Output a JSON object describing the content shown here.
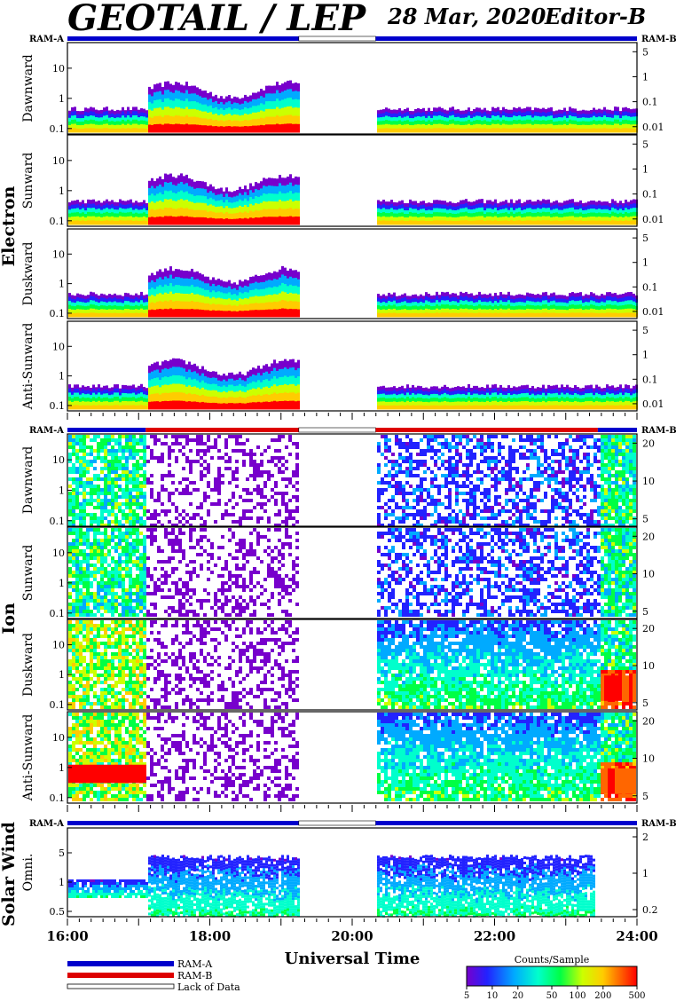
{
  "header": {
    "title": "GEOTAIL / LEP",
    "date": "28 Mar, 2020",
    "editor": "Editor-B"
  },
  "colors": {
    "ram_a": "#0000cc",
    "ram_b": "#dd0000",
    "spectrogram_scale": [
      "#7700cc",
      "#2222ff",
      "#00aaff",
      "#00ffcc",
      "#00ff44",
      "#ccff00",
      "#ffcc00",
      "#ff6600",
      "#ff0000"
    ]
  },
  "chart_data": {
    "type": "heatmap",
    "xlabel": "Universal Time",
    "x_ticks": [
      "16:00",
      "18:00",
      "20:00",
      "22:00",
      "24:00"
    ],
    "x_range_hours": [
      16,
      24
    ],
    "data_gap_hours": [
      19.25,
      20.33
    ],
    "groups": [
      {
        "name": "Electron",
        "ram_labels": [
          "RAM-A",
          "RAM-B"
        ],
        "ram_segments": [
          {
            "start": 16.0,
            "end": 19.25,
            "mode": "A"
          },
          {
            "start": 19.25,
            "end": 20.33,
            "mode": "gap"
          },
          {
            "start": 20.33,
            "end": 24.0,
            "mode": "A"
          }
        ],
        "panels": [
          {
            "label": "Dawnward",
            "left_ticks": [
              "10",
              "1",
              "0.1"
            ],
            "right_ticks": [
              "5",
              "1",
              "0.1",
              "0.01"
            ]
          },
          {
            "label": "Sunward",
            "left_ticks": [
              "10",
              "1",
              "0.1"
            ],
            "right_ticks": [
              "5",
              "1",
              "0.1",
              "0.01"
            ]
          },
          {
            "label": "Duskward",
            "left_ticks": [
              "10",
              "1",
              "0.1"
            ],
            "right_ticks": [
              "5",
              "1",
              "0.1",
              "0.01"
            ]
          },
          {
            "label": "Anti-Sunward",
            "left_ticks": [
              "10",
              "1",
              "0.1"
            ],
            "right_ticks": [
              "5",
              "1",
              "0.1",
              "0.01"
            ]
          }
        ]
      },
      {
        "name": "Ion",
        "ram_labels": [
          "RAM-A",
          "RAM-B"
        ],
        "ram_segments": [
          {
            "start": 16.0,
            "end": 17.1,
            "mode": "A"
          },
          {
            "start": 17.1,
            "end": 19.25,
            "mode": "B"
          },
          {
            "start": 19.25,
            "end": 20.33,
            "mode": "gap"
          },
          {
            "start": 20.33,
            "end": 23.45,
            "mode": "B"
          },
          {
            "start": 23.45,
            "end": 24.0,
            "mode": "A"
          }
        ],
        "panels": [
          {
            "label": "Dawnward",
            "left_ticks": [
              "10",
              "1",
              "0.1"
            ],
            "right_ticks": [
              "20",
              "10",
              "5"
            ]
          },
          {
            "label": "Sunward",
            "left_ticks": [
              "10",
              "1",
              "0.1"
            ],
            "right_ticks": [
              "20",
              "10",
              "5"
            ]
          },
          {
            "label": "Duskward",
            "left_ticks": [
              "10",
              "1",
              "0.1"
            ],
            "right_ticks": [
              "20",
              "10",
              "5"
            ]
          },
          {
            "label": "Anti-Sunward",
            "left_ticks": [
              "10",
              "1",
              "0.1"
            ],
            "right_ticks": [
              "20",
              "10",
              "5"
            ]
          }
        ]
      },
      {
        "name": "Solar Wind",
        "ram_labels": [
          "RAM-A",
          "RAM-B"
        ],
        "ram_segments": [
          {
            "start": 16.0,
            "end": 19.25,
            "mode": "A"
          },
          {
            "start": 19.25,
            "end": 20.33,
            "mode": "gap"
          },
          {
            "start": 20.33,
            "end": 24.0,
            "mode": "A"
          }
        ],
        "panels": [
          {
            "label": "Omni.",
            "left_ticks": [
              "5",
              "1",
              "0.5"
            ],
            "right_ticks": [
              "2",
              "1",
              "0.2"
            ]
          }
        ]
      }
    ],
    "legend": {
      "items": [
        "RAM-A",
        "RAM-B",
        "Lack of Data"
      ]
    },
    "colorbar": {
      "title": "Counts/Sample",
      "ticks": [
        "5",
        "10",
        "20",
        "50",
        "100",
        "200",
        "500"
      ],
      "range": [
        5,
        500
      ],
      "scale": "log"
    }
  }
}
